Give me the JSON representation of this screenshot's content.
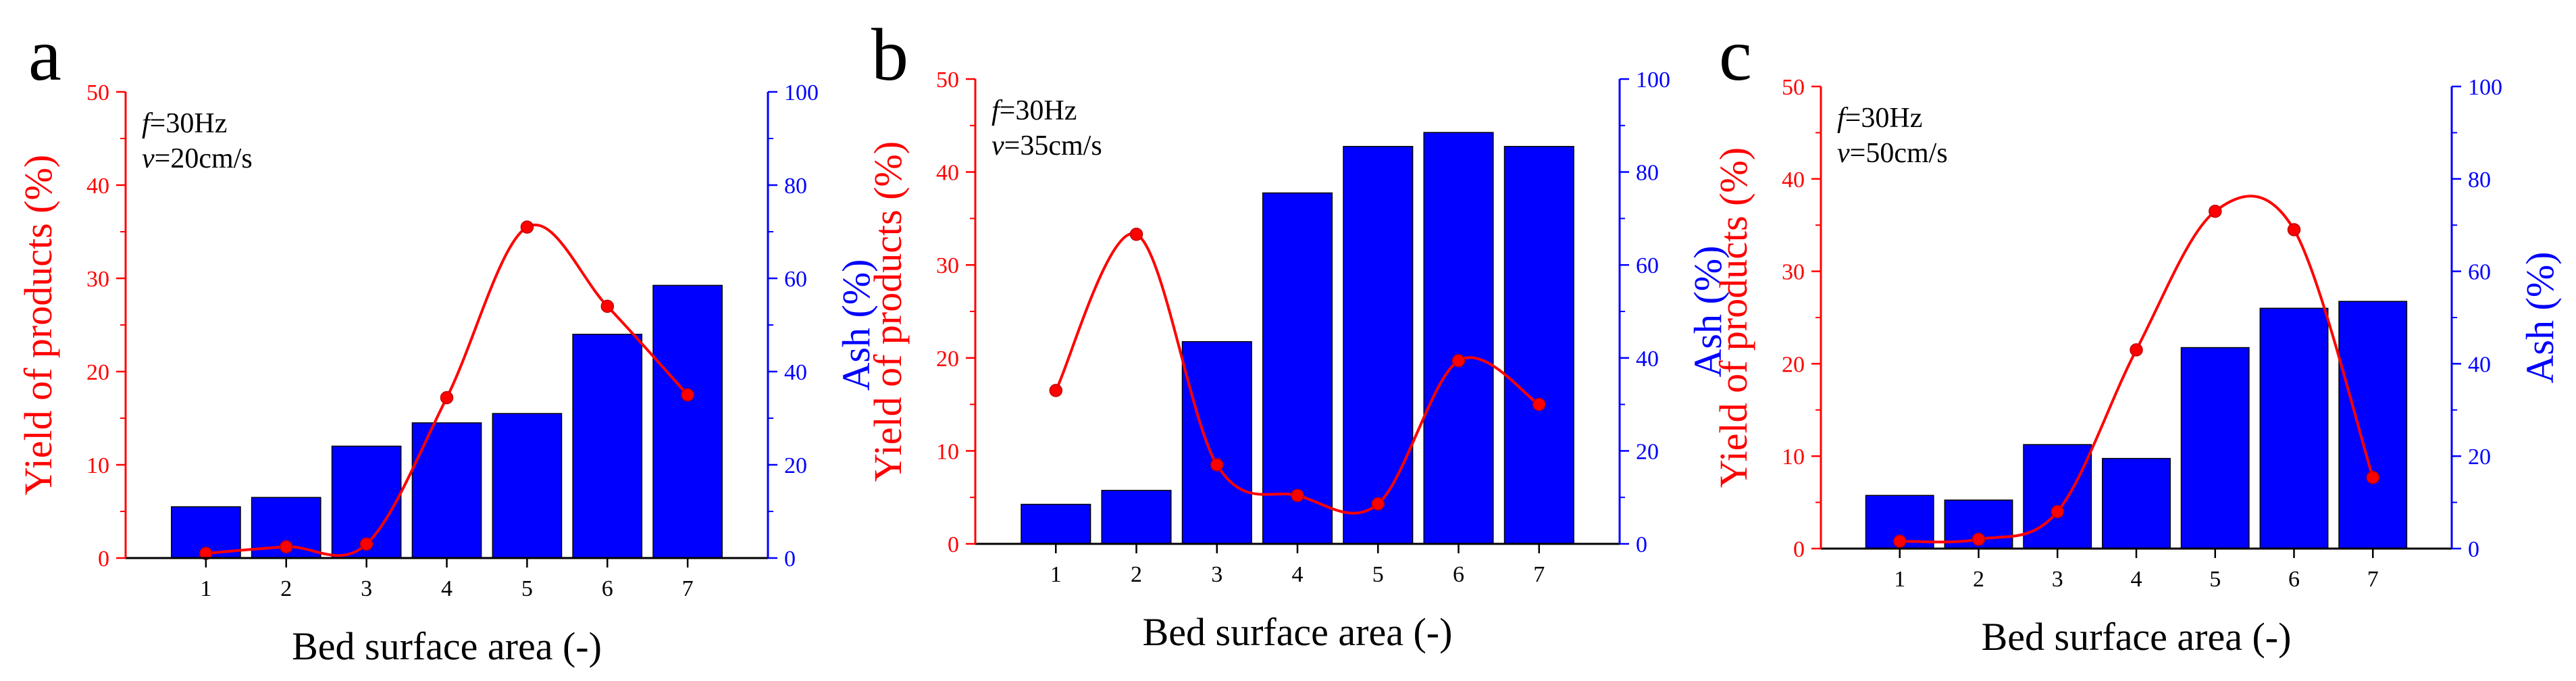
{
  "colors": {
    "left_axis": "#ff0000",
    "right_axis": "#0000ff",
    "bars": "#0000ff",
    "line": "#ff0000",
    "axis_x": "#000000"
  },
  "chart_data": [
    {
      "type": "bar+line",
      "panel_label": "a",
      "annotation": {
        "f_symbol": "f",
        "f_value": "=30Hz",
        "v_symbol": "v",
        "v_value": "=20cm/s"
      },
      "xlabel": "Bed surface area (-)",
      "ylabel_left": "Yield of products (%)",
      "ylabel_right": "Ash (%)",
      "categories": [
        "1",
        "2",
        "3",
        "4",
        "5",
        "6",
        "7"
      ],
      "ylim_left": [
        0,
        50
      ],
      "yticks_left": [
        "0",
        "10",
        "20",
        "30",
        "40",
        "50"
      ],
      "ylim_right": [
        0,
        100
      ],
      "yticks_right": [
        "0",
        "20",
        "40",
        "60",
        "80",
        "100"
      ],
      "series": [
        {
          "axis": "right",
          "kind": "bar",
          "values": [
            11,
            13,
            24,
            29,
            31,
            48,
            58.5
          ]
        },
        {
          "axis": "left",
          "kind": "line",
          "values": [
            0.5,
            1.2,
            1.5,
            17.2,
            35.5,
            27,
            17.5
          ]
        }
      ]
    },
    {
      "type": "bar+line",
      "panel_label": "b",
      "annotation": {
        "f_symbol": "f",
        "f_value": "=30Hz",
        "v_symbol": "v",
        "v_value": "=35cm/s"
      },
      "xlabel": "Bed surface area (-)",
      "ylabel_left": "Yield of products (%)",
      "ylabel_right": "Ash (%)",
      "categories": [
        "1",
        "2",
        "3",
        "4",
        "5",
        "6",
        "7"
      ],
      "ylim_left": [
        0,
        50
      ],
      "yticks_left": [
        "0",
        "10",
        "20",
        "30",
        "40",
        "50"
      ],
      "ylim_right": [
        0,
        100
      ],
      "yticks_right": [
        "0",
        "20",
        "40",
        "60",
        "80",
        "100"
      ],
      "series": [
        {
          "axis": "right",
          "kind": "bar",
          "values": [
            8.5,
            11.5,
            43.5,
            75.5,
            85.5,
            88.5,
            85.5
          ]
        },
        {
          "axis": "left",
          "kind": "line",
          "values": [
            16.5,
            33.3,
            8.5,
            5.2,
            4.3,
            19.7,
            15
          ]
        }
      ]
    },
    {
      "type": "bar+line",
      "panel_label": "c",
      "annotation": {
        "f_symbol": "f",
        "f_value": "=30Hz",
        "v_symbol": "v",
        "v_value": "=50cm/s"
      },
      "xlabel": "Bed surface area (-)",
      "ylabel_left": "Yield of products (%)",
      "ylabel_right": "Ash (%)",
      "categories": [
        "1",
        "2",
        "3",
        "4",
        "5",
        "6",
        "7"
      ],
      "ylim_left": [
        0,
        50
      ],
      "yticks_left": [
        "0",
        "10",
        "20",
        "30",
        "40",
        "50"
      ],
      "ylim_right": [
        0,
        100
      ],
      "yticks_right": [
        "0",
        "20",
        "40",
        "60",
        "80",
        "100"
      ],
      "series": [
        {
          "axis": "right",
          "kind": "bar",
          "values": [
            11.5,
            10.5,
            22.5,
            19.5,
            43.5,
            52,
            53.5
          ]
        },
        {
          "axis": "left",
          "kind": "line",
          "values": [
            0.8,
            1.0,
            4.0,
            21.5,
            36.5,
            34.5,
            7.7
          ]
        }
      ]
    }
  ]
}
